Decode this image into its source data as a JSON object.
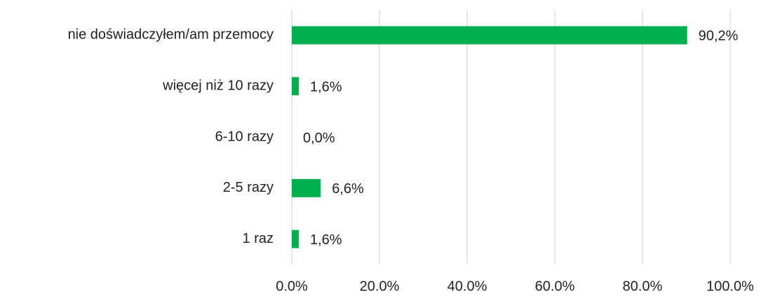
{
  "chart_data": {
    "type": "bar",
    "orientation": "horizontal",
    "categories": [
      "nie doświadczyłem/am przemocy",
      "więcej niż 10 razy",
      "6-10 razy",
      "2-5 razy",
      "1 raz"
    ],
    "values": [
      90.2,
      1.6,
      0,
      6.6,
      1.6
    ],
    "value_labels": [
      "90,2%",
      "1,6%",
      "0,0%",
      "6,6%",
      "1,6%"
    ],
    "color": "#00b050",
    "xlim": [
      0,
      100
    ],
    "xticks": [
      {
        "value": 0,
        "label": "0.0%"
      },
      {
        "value": 20,
        "label": "20.0%"
      },
      {
        "value": 40,
        "label": "40.0%"
      },
      {
        "value": 60,
        "label": "60.0%"
      },
      {
        "value": 80,
        "label": "80.0%"
      },
      {
        "value": 100,
        "label": "100.0%"
      }
    ],
    "grid": true
  }
}
